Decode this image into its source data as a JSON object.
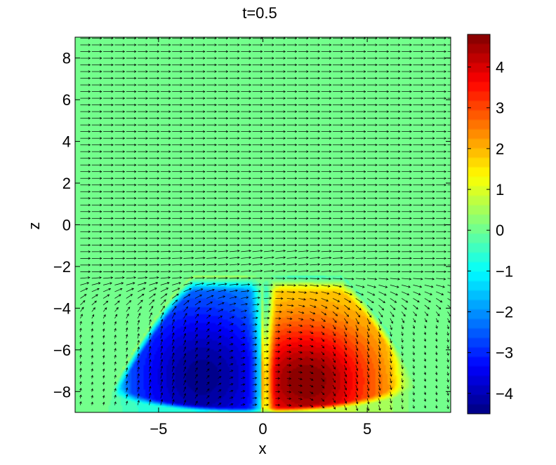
{
  "chart_data": {
    "type": "heatmap",
    "title": "t=0.5",
    "xlabel": "x",
    "ylabel": "z",
    "xlim": [
      -9,
      9
    ],
    "ylim": [
      -9,
      9
    ],
    "xticks": [
      "−5",
      "0",
      "5"
    ],
    "yticks": [
      "8",
      "6",
      "4",
      "2",
      "0",
      "−2",
      "−4",
      "−6",
      "−8"
    ],
    "colorbar": {
      "range": [
        -4.5,
        4.8
      ],
      "ticks": [
        "4",
        "3",
        "2",
        "1",
        "0",
        "−1",
        "−2",
        "−3",
        "−4"
      ],
      "colormap": "jet"
    },
    "background_value": 0,
    "structures": [
      {
        "name": "negative-lobe",
        "center": [
          -2.8,
          -7.0
        ],
        "extent": [
          3.4,
          3.6
        ],
        "peak": -4.3
      },
      {
        "name": "positive-lobe",
        "center": [
          2.6,
          -7.2
        ],
        "extent": [
          3.4,
          3.6
        ],
        "peak": 4.6
      }
    ],
    "vector_field": {
      "description": "uniform rightward flow above z≈-2, perturbed vortex flow below",
      "far_field_direction": [
        1,
        0
      ]
    },
    "grid": false
  },
  "colors": {
    "background_field": "#7fff55",
    "axis": "#000000"
  }
}
